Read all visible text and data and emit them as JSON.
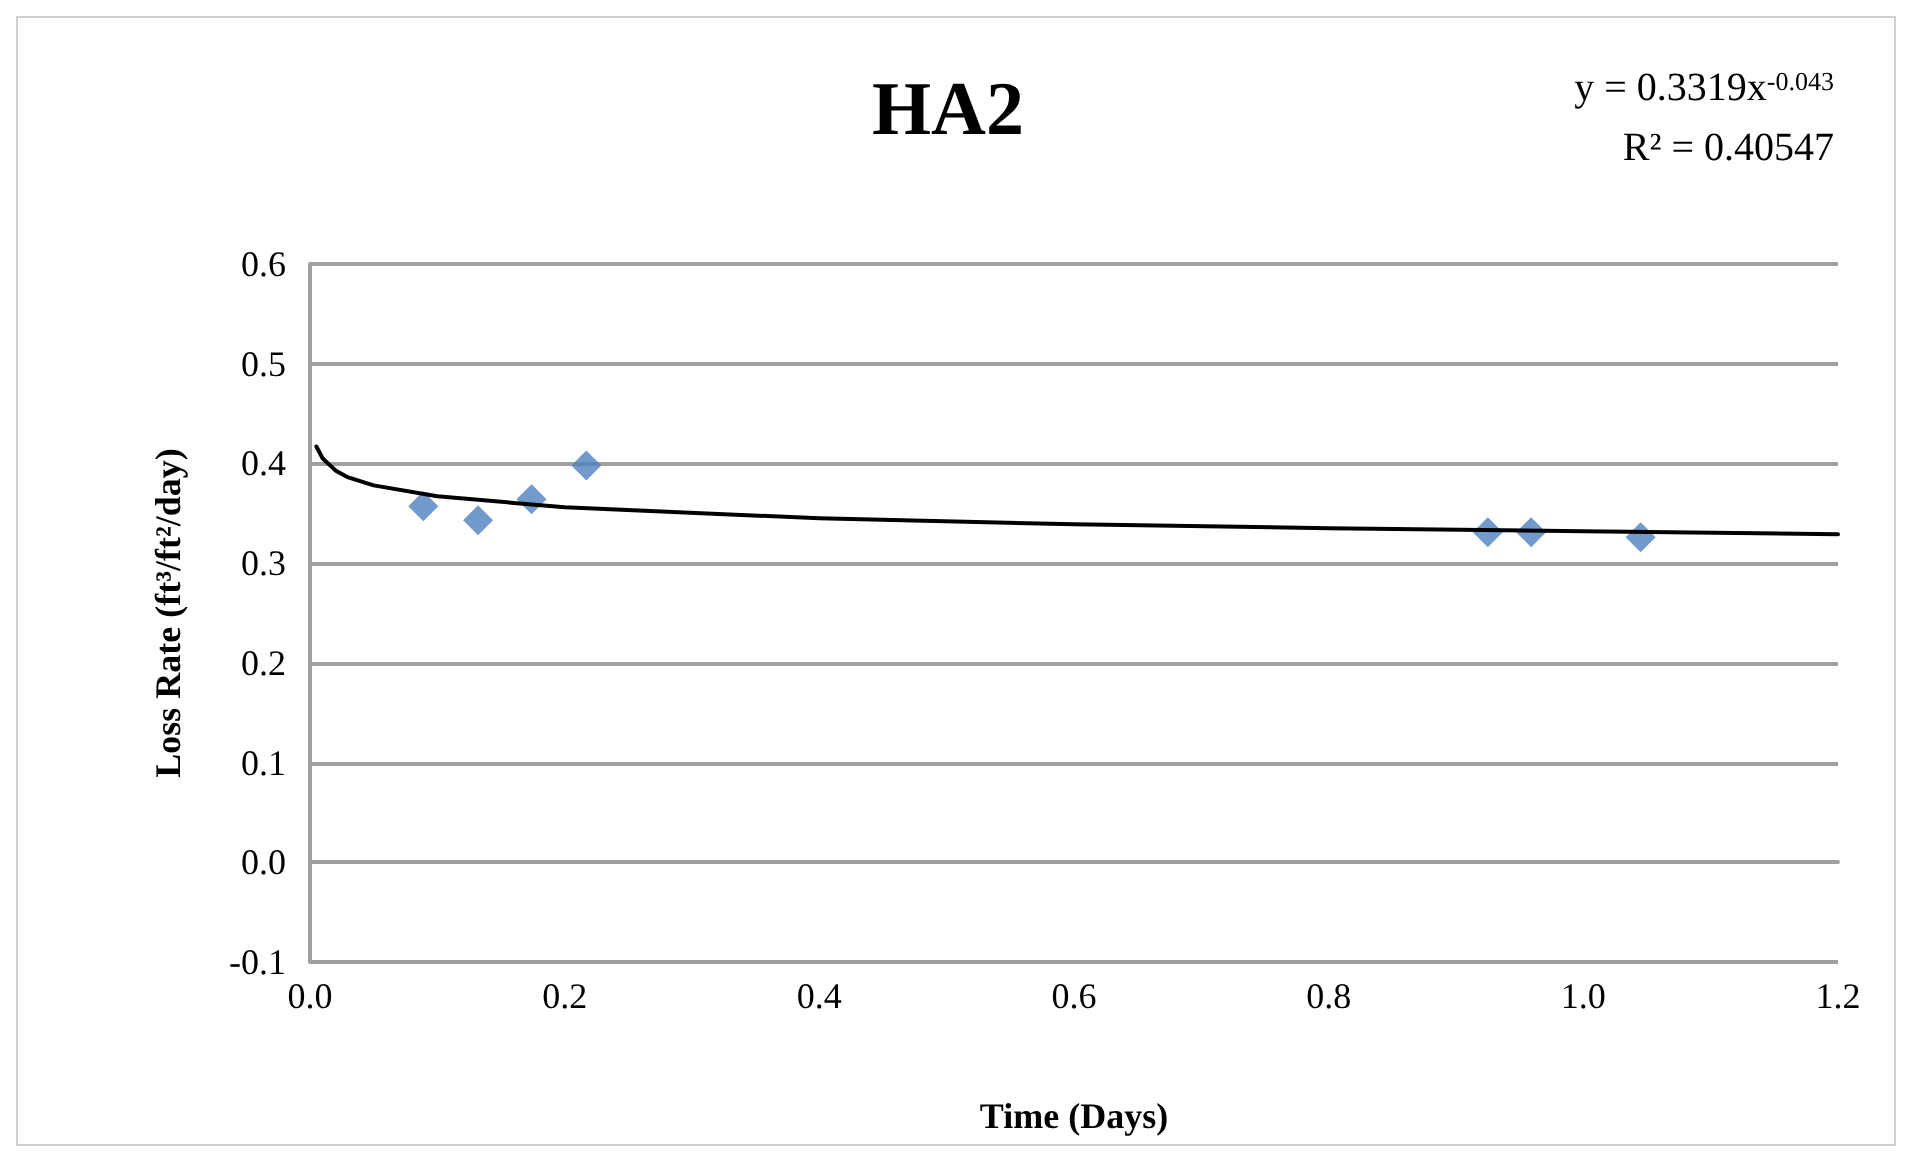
{
  "chart_data": {
    "type": "scatter",
    "title": "HA2",
    "xlabel": "Time (Days)",
    "ylabel": "Loss Rate (ft³/ft²/day)",
    "annotations": [
      "y = 0.3319x$^{-0.043}$",
      "R² = 0.40547"
    ],
    "x": [
      0.089,
      0.132,
      0.174,
      0.217,
      0.925,
      0.959,
      1.045
    ],
    "series": [
      {
        "color": "#4f81bd",
        "marker": "diamond",
        "values": [
          0.357,
          0.343,
          0.364,
          0.398,
          0.331,
          0.331,
          0.326
        ]
      },
      {
        "type": "line",
        "color": "#000000",
        "marker": "none",
        "x": [
          0.005,
          0.01,
          0.02,
          0.03,
          0.05,
          0.1,
          0.2,
          0.4,
          0.6,
          0.8,
          1.0,
          1.2
        ],
        "values": [
          0.417,
          0.405,
          0.393,
          0.386,
          0.378,
          0.367,
          0.356,
          0.345,
          0.339,
          0.335,
          0.332,
          0.329
        ]
      }
    ],
    "xlim": [
      0,
      1.2
    ],
    "xticks": [
      {
        "value": 0,
        "label": "0.0"
      },
      0.2,
      0.4,
      0.6,
      0.8,
      {
        "value": 1,
        "label": "1.0"
      },
      1.2
    ],
    "ylim": [
      -0.1,
      0.6
    ],
    "yticks": [
      -0.1,
      {
        "value": 0,
        "label": "0.0"
      },
      0.1,
      0.2,
      0.3,
      0.4,
      0.5,
      0.6
    ],
    "grid": "y"
  }
}
